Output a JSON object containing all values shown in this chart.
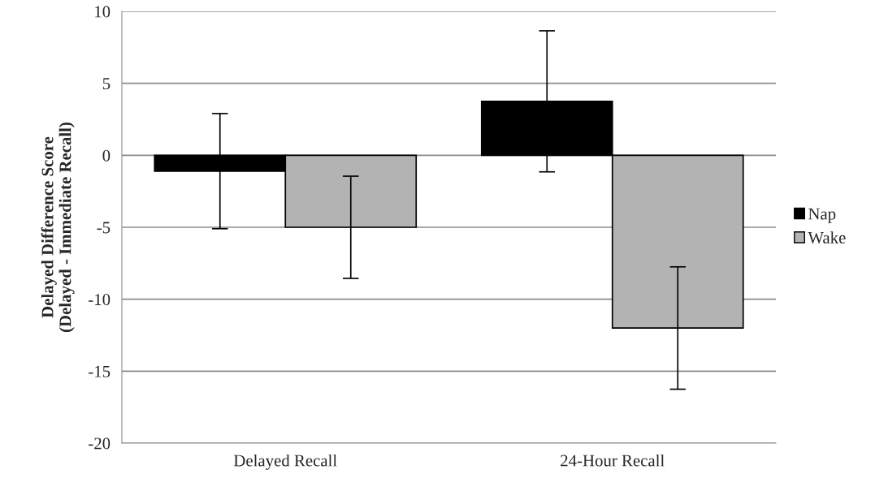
{
  "chart_data": {
    "type": "bar",
    "ylabel": "Delayed Difference Score\n(Delayed - Immediate Recall)",
    "categories": [
      "Delayed Recall",
      "24-Hour Recall"
    ],
    "series": [
      {
        "name": "Nap",
        "color": "#000000",
        "values": [
          -1.1,
          3.75
        ],
        "errors": [
          4.0,
          4.9
        ]
      },
      {
        "name": "Wake",
        "color": "#b3b3b3",
        "values": [
          -5.0,
          -12.0
        ],
        "errors": [
          3.55,
          4.25
        ]
      }
    ],
    "ylim": [
      -20,
      10
    ],
    "yticks": [
      -20,
      -15,
      -10,
      -5,
      0,
      5,
      10
    ],
    "grid": "y",
    "legend": "right"
  }
}
